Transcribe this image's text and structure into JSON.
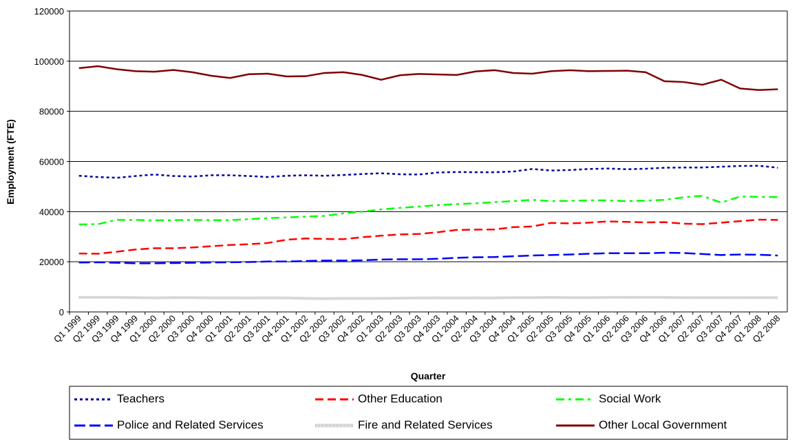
{
  "chart_data": {
    "type": "line",
    "x_label": "Quarter",
    "y_label": "Employment (FTE)",
    "categories": [
      "Q1 1999",
      "Q2 1999",
      "Q3 1999",
      "Q4 1999",
      "Q1 2000",
      "Q2 2000",
      "Q3 2000",
      "Q4 2000",
      "Q1 2001",
      "Q2 2001",
      "Q3 2001",
      "Q4 2001",
      "Q1 2002",
      "Q2 2002",
      "Q3 2002",
      "Q4 2002",
      "Q1 2003",
      "Q2 2003",
      "Q3 2003",
      "Q4 2003",
      "Q1 2004",
      "Q2 2004",
      "Q3 2004",
      "Q4 2004",
      "Q1 2005",
      "Q2 2005",
      "Q3 2005",
      "Q4 2005",
      "Q1 2006",
      "Q2 2006",
      "Q3 2006",
      "Q4 2006",
      "Q1 2007",
      "Q2 2007",
      "Q3 2007",
      "Q4 2007",
      "Q1 2008",
      "Q2 2008"
    ],
    "ylim": [
      0,
      120000
    ],
    "yticks": [
      0,
      20000,
      40000,
      60000,
      80000,
      100000,
      120000
    ],
    "grid": true,
    "series": [
      {
        "name": "Teachers",
        "color": "#0000a0",
        "dash": "4,4",
        "values": [
          54300,
          53800,
          53500,
          54200,
          54800,
          54200,
          54000,
          54500,
          54500,
          54200,
          53800,
          54300,
          54500,
          54300,
          54600,
          55000,
          55300,
          54900,
          54800,
          55600,
          55800,
          55700,
          55700,
          56000,
          57000,
          56400,
          56600,
          57000,
          57200,
          56900,
          57100,
          57500,
          57600,
          57600,
          57900,
          58200,
          58300,
          57500
        ]
      },
      {
        "name": "Other Education",
        "color": "#ff0000",
        "dash": "12,6",
        "values": [
          23300,
          23200,
          24000,
          24900,
          25400,
          25400,
          25700,
          26200,
          26700,
          27000,
          27500,
          28800,
          29300,
          29100,
          29000,
          29800,
          30400,
          30900,
          31100,
          31800,
          32700,
          32800,
          32900,
          33800,
          34100,
          35500,
          35300,
          35600,
          36100,
          35900,
          35700,
          35800,
          35200,
          35000,
          35600,
          36200,
          36800,
          36700
        ]
      },
      {
        "name": "Social Work",
        "color": "#00ff00",
        "dash": "12,6,4,6",
        "values": [
          34900,
          35000,
          36700,
          36700,
          36500,
          36600,
          36700,
          36600,
          36600,
          37000,
          37400,
          37700,
          38000,
          38300,
          39300,
          40000,
          40900,
          41500,
          42000,
          42600,
          43000,
          43300,
          43800,
          44200,
          44700,
          44200,
          44300,
          44500,
          44500,
          44200,
          44400,
          44700,
          45700,
          46300,
          43600,
          46000,
          45900,
          45800
        ]
      },
      {
        "name": "Police and Related Services",
        "color": "#0000ff",
        "dash": "16,6",
        "values": [
          19700,
          19800,
          19600,
          19400,
          19400,
          19500,
          19600,
          19700,
          19800,
          19900,
          20100,
          20100,
          20300,
          20500,
          20500,
          20600,
          20900,
          21000,
          21000,
          21200,
          21600,
          21800,
          21900,
          22200,
          22500,
          22700,
          22900,
          23200,
          23400,
          23400,
          23400,
          23600,
          23500,
          23100,
          22700,
          22900,
          22800,
          22500
        ]
      },
      {
        "name": "Fire and Related Services",
        "color": "#b0b0b0",
        "dash": "1,1",
        "values": [
          5800,
          5800,
          5800,
          5700,
          5600,
          5700,
          5700,
          5600,
          5600,
          5600,
          5600,
          5600,
          5400,
          5300,
          5400,
          5400,
          5400,
          5500,
          5600,
          5600,
          5600,
          5600,
          5600,
          5700,
          5700,
          5800,
          5700,
          5700,
          5800,
          5800,
          5800,
          5800,
          5700,
          5700,
          5700,
          5700,
          5700,
          5700
        ]
      },
      {
        "name": "Other Local Government",
        "color": "#800000",
        "dash": "",
        "values": [
          97200,
          98000,
          96800,
          96000,
          95800,
          96500,
          95600,
          94200,
          93300,
          94800,
          95000,
          93900,
          94000,
          95300,
          95600,
          94500,
          92600,
          94400,
          94900,
          94700,
          94500,
          95900,
          96400,
          95300,
          95000,
          96000,
          96400,
          96000,
          96100,
          96200,
          95600,
          92000,
          91700,
          90600,
          92600,
          89100,
          88500,
          88800
        ]
      }
    ]
  }
}
